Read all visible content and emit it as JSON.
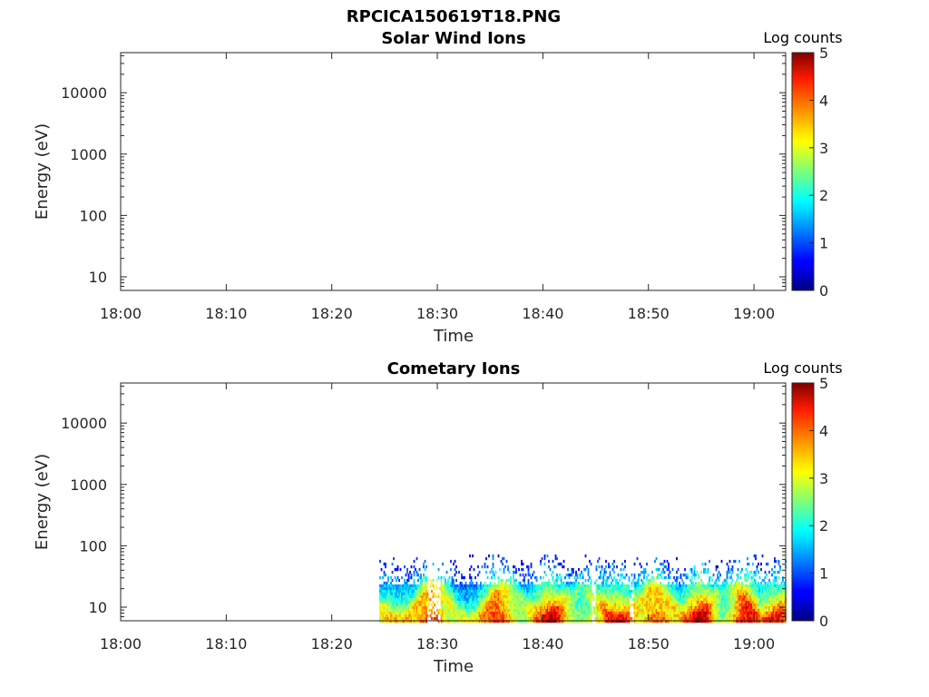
{
  "figure": {
    "title": "RPCICA150619T18.PNG"
  },
  "chart_data": [
    {
      "type": "heatmap",
      "title": "Solar Wind Ions",
      "xlabel": "Time",
      "ylabel": "Energy (eV)",
      "x_ticks": [
        "18:00",
        "18:10",
        "18:20",
        "18:30",
        "18:40",
        "18:50",
        "19:00"
      ],
      "x_range_minutes": [
        0,
        63
      ],
      "y_scale": "log",
      "y_ticks": [
        "10",
        "100",
        "1000",
        "10000"
      ],
      "y_range": [
        6,
        45000
      ],
      "colorbar": {
        "label": "Log counts",
        "ticks": [
          "0",
          "1",
          "2",
          "3",
          "4",
          "5"
        ],
        "range": [
          0,
          5
        ],
        "colormap": "jet"
      },
      "data": []
    },
    {
      "type": "heatmap",
      "title": "Cometary Ions",
      "xlabel": "Time",
      "ylabel": "Energy (eV)",
      "x_ticks": [
        "18:00",
        "18:10",
        "18:20",
        "18:30",
        "18:40",
        "18:50",
        "19:00"
      ],
      "x_range_minutes": [
        0,
        63
      ],
      "y_scale": "log",
      "y_ticks": [
        "10",
        "100",
        "1000",
        "10000"
      ],
      "y_range": [
        6,
        45000
      ],
      "colorbar": {
        "label": "Log counts",
        "ticks": [
          "0",
          "1",
          "2",
          "3",
          "4",
          "5"
        ],
        "range": [
          0,
          5
        ],
        "colormap": "jet"
      },
      "data_extent": {
        "start": "18:24.5",
        "end": "19:03",
        "energy_min": 6,
        "energy_max": 80
      },
      "data_peaks_minutes": [
        29,
        36,
        41,
        47,
        51,
        55,
        59,
        62
      ]
    }
  ]
}
